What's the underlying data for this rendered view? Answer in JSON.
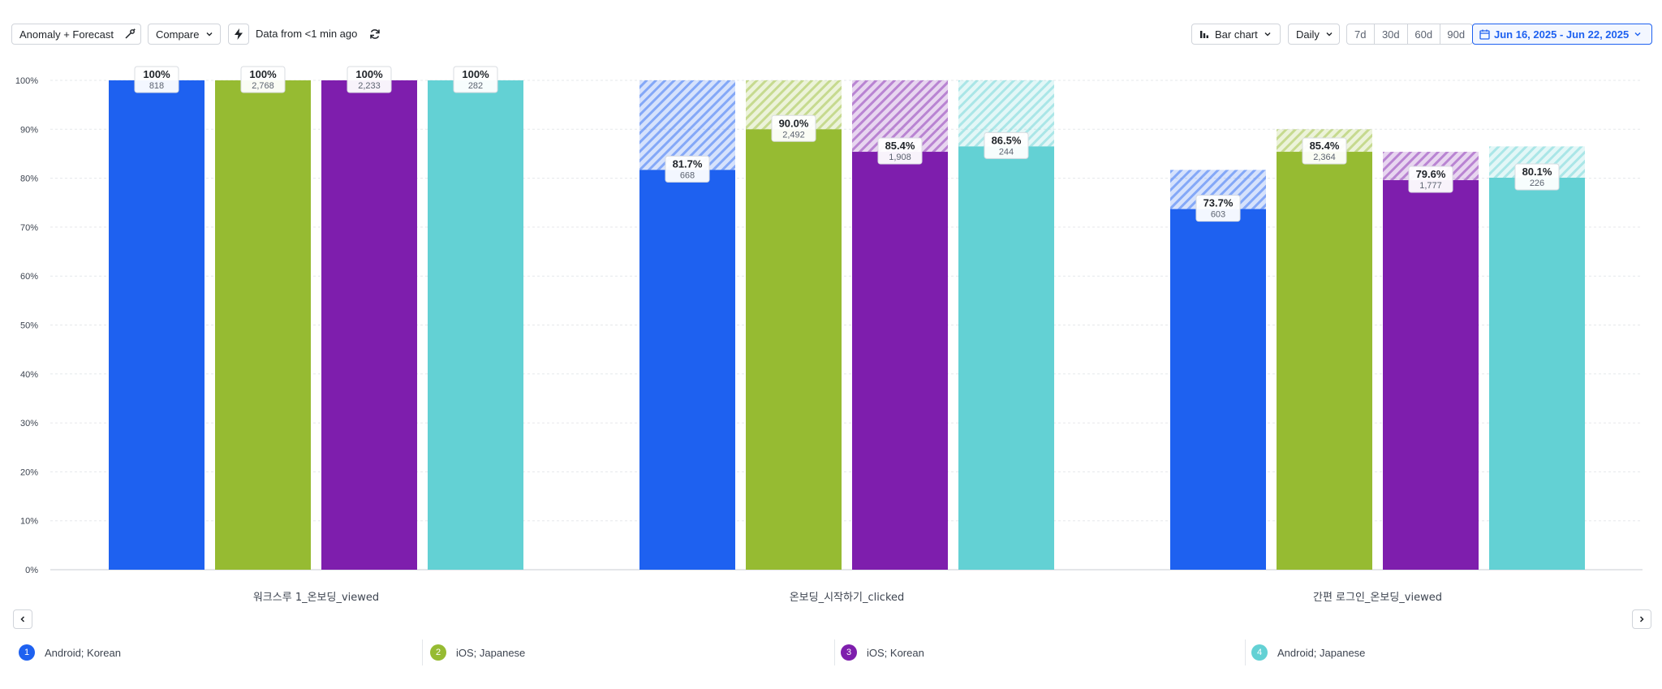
{
  "toolbar": {
    "anomaly_label": "Anomaly + Forecast",
    "compare_label": "Compare",
    "status_text": "Data from <1 min ago",
    "chart_type_label": "Bar chart",
    "interval_label": "Daily",
    "ranges": [
      "7d",
      "30d",
      "60d",
      "90d"
    ],
    "date_range": "Jun 16, 2025 - Jun 22, 2025"
  },
  "legend": [
    {
      "index": "1",
      "label": "Android; Korean",
      "color": "#1e61f0"
    },
    {
      "index": "2",
      "label": "iOS; Japanese",
      "color": "#96bb32"
    },
    {
      "index": "3",
      "label": "iOS; Korean",
      "color": "#7e1ead"
    },
    {
      "index": "4",
      "label": "Android; Japanese",
      "color": "#63d1d4"
    }
  ],
  "chart_data": {
    "type": "bar",
    "categories": [
      "워크스루 1_온보딩_viewed",
      "온보딩_시작하기_clicked",
      "간편 로그인_온보딩_viewed"
    ],
    "y_ticks": [
      "100%",
      "90%",
      "80%",
      "70%",
      "60%",
      "50%",
      "40%",
      "30%",
      "20%",
      "10%",
      "0%"
    ],
    "ylim": [
      0,
      100
    ],
    "series": [
      {
        "name": "Android; Korean",
        "values": [
          100,
          81.7,
          73.7
        ],
        "labels": [
          "100%",
          "81.7%",
          "73.7%"
        ],
        "counts": [
          "818",
          "668",
          "603"
        ]
      },
      {
        "name": "iOS; Japanese",
        "values": [
          100,
          90.0,
          85.4
        ],
        "labels": [
          "100%",
          "90.0%",
          "85.4%"
        ],
        "counts": [
          "2,768",
          "2,492",
          "2,364"
        ]
      },
      {
        "name": "iOS; Korean",
        "values": [
          100,
          85.4,
          79.6
        ],
        "labels": [
          "100%",
          "85.4%",
          "79.6%"
        ],
        "counts": [
          "2,233",
          "1,908",
          "1,777"
        ]
      },
      {
        "name": "Android; Japanese",
        "values": [
          100,
          86.5,
          80.1
        ],
        "labels": [
          "100%",
          "86.5%",
          "80.1%"
        ],
        "counts": [
          "282",
          "244",
          "226"
        ]
      }
    ]
  }
}
